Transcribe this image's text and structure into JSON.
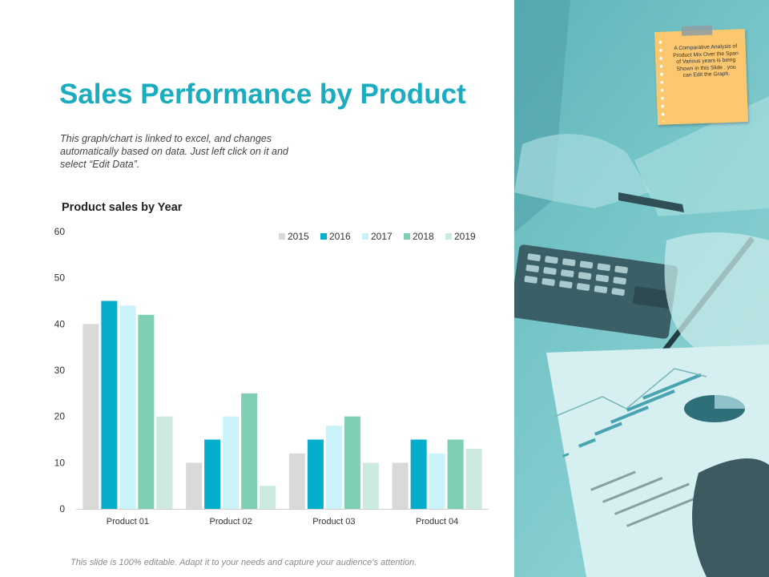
{
  "slide": {
    "title": "Sales Performance by Product",
    "description": "This graph/chart is linked to excel, and changes automatically based on data. Just left click on it and select “Edit Data”.",
    "footer": "This slide is 100% editable. Adapt it to your needs and capture your audience’s attention.",
    "note": "A Comparative Analysis of Product Mix Over the Span of Various years is being Shown in this Slide . you can Edit the Graph."
  },
  "chart_data": {
    "type": "bar",
    "title": "Product sales by Year",
    "categories": [
      "Product 01",
      "Product 02",
      "Product 03",
      "Product 04"
    ],
    "series": [
      {
        "name": "2015",
        "color": "#d9d9d9",
        "values": [
          40,
          10,
          12,
          10
        ]
      },
      {
        "name": "2016",
        "color": "#05aecb",
        "values": [
          45,
          15,
          15,
          15
        ]
      },
      {
        "name": "2017",
        "color": "#c9f3f9",
        "values": [
          44,
          20,
          18,
          12
        ]
      },
      {
        "name": "2018",
        "color": "#7fcfb4",
        "values": [
          42,
          25,
          20,
          15
        ]
      },
      {
        "name": "2019",
        "color": "#cdeae0",
        "values": [
          20,
          5,
          10,
          13
        ]
      }
    ],
    "ylim": [
      0,
      60
    ],
    "yticks": [
      "0",
      "10",
      "20",
      "30",
      "40",
      "50",
      "60"
    ],
    "grid": false,
    "legend": "top-right"
  }
}
